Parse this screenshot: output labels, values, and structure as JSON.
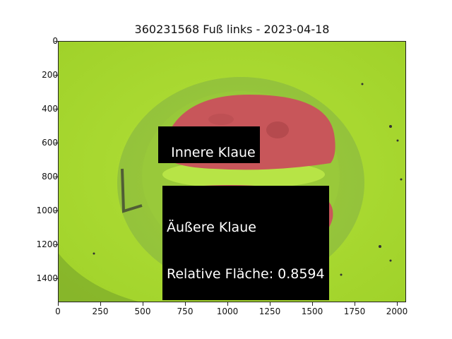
{
  "title": "360231568 Fuß links - 2023-04-18",
  "y_ticks": [
    "0",
    "200",
    "400",
    "600",
    "800",
    "1000",
    "1200",
    "1400"
  ],
  "x_ticks": [
    "0",
    "250",
    "500",
    "750",
    "1000",
    "1250",
    "1500",
    "1750",
    "2000"
  ],
  "labels": {
    "inner": "Innere Klaue",
    "outer_line1": "Äußere Klaue",
    "outer_line2": "Relative Fläche: 0.8594"
  },
  "colors": {
    "background_green": "#a6d92b",
    "overlay_red": "#c8565a"
  }
}
